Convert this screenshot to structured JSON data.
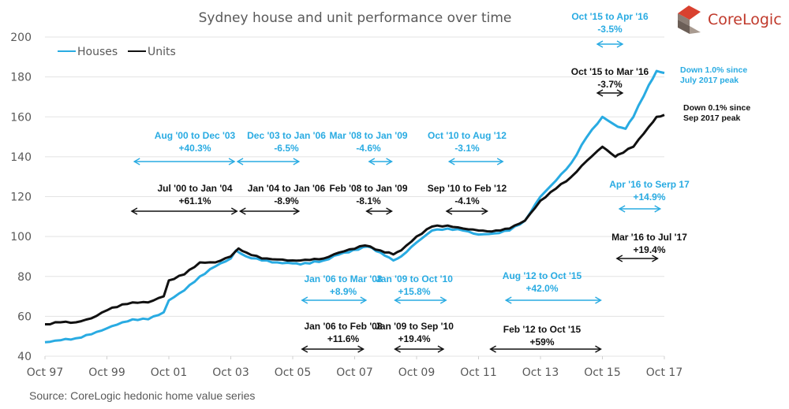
{
  "chart_data": {
    "type": "line",
    "title": "Sydney house and unit performance over time",
    "xlabel": "",
    "ylabel": "",
    "ylim": [
      40,
      200
    ],
    "yticks": [
      40,
      60,
      80,
      100,
      120,
      140,
      160,
      180,
      200
    ],
    "xticks": [
      "Oct 97",
      "Oct 99",
      "Oct 01",
      "Oct 03",
      "Oct 05",
      "Oct 07",
      "Oct 09",
      "Oct 11",
      "Oct 13",
      "Oct 15",
      "Oct 17"
    ],
    "x_range_months": [
      0,
      240
    ],
    "grid": true,
    "legend_position": "top-left",
    "series": [
      {
        "name": "Houses",
        "color": "#29abe2",
        "points": [
          [
            0,
            47
          ],
          [
            6,
            48
          ],
          [
            12,
            49
          ],
          [
            18,
            51
          ],
          [
            24,
            54
          ],
          [
            30,
            57
          ],
          [
            34,
            58.5
          ],
          [
            40,
            58.5
          ],
          [
            46,
            62
          ],
          [
            48,
            68
          ],
          [
            54,
            73
          ],
          [
            60,
            80
          ],
          [
            66,
            85
          ],
          [
            72,
            89
          ],
          [
            74,
            93
          ],
          [
            78,
            90
          ],
          [
            84,
            88
          ],
          [
            90,
            87
          ],
          [
            96,
            86.5
          ],
          [
            99,
            86
          ],
          [
            108,
            88
          ],
          [
            114,
            91
          ],
          [
            125,
            95
          ],
          [
            130,
            92
          ],
          [
            135,
            88
          ],
          [
            138,
            90
          ],
          [
            144,
            97
          ],
          [
            150,
            103
          ],
          [
            156,
            104
          ],
          [
            162,
            103
          ],
          [
            168,
            101
          ],
          [
            174,
            101.5
          ],
          [
            180,
            103
          ],
          [
            186,
            108
          ],
          [
            192,
            120
          ],
          [
            198,
            128
          ],
          [
            204,
            137
          ],
          [
            210,
            150
          ],
          [
            216,
            160
          ],
          [
            222,
            155
          ],
          [
            225,
            154
          ],
          [
            228,
            160
          ],
          [
            234,
            176
          ],
          [
            237,
            183
          ],
          [
            240,
            182
          ]
        ]
      },
      {
        "name": "Units",
        "color": "#111111",
        "points": [
          [
            0,
            56
          ],
          [
            6,
            57
          ],
          [
            12,
            57
          ],
          [
            18,
            59
          ],
          [
            24,
            63
          ],
          [
            30,
            66
          ],
          [
            34,
            67
          ],
          [
            40,
            67
          ],
          [
            46,
            70
          ],
          [
            48,
            78
          ],
          [
            54,
            81
          ],
          [
            60,
            87
          ],
          [
            66,
            87
          ],
          [
            72,
            90
          ],
          [
            75,
            94
          ],
          [
            78,
            92
          ],
          [
            84,
            89
          ],
          [
            90,
            88.5
          ],
          [
            96,
            88
          ],
          [
            99,
            88
          ],
          [
            108,
            89
          ],
          [
            114,
            92
          ],
          [
            124,
            95.5
          ],
          [
            130,
            93
          ],
          [
            135,
            91
          ],
          [
            138,
            93
          ],
          [
            144,
            100
          ],
          [
            150,
            105
          ],
          [
            156,
            105.5
          ],
          [
            162,
            104
          ],
          [
            168,
            103
          ],
          [
            173,
            102.5
          ],
          [
            180,
            104
          ],
          [
            186,
            108
          ],
          [
            192,
            118
          ],
          [
            198,
            124
          ],
          [
            204,
            130
          ],
          [
            210,
            138
          ],
          [
            216,
            145
          ],
          [
            222,
            141
          ],
          [
            221,
            140
          ],
          [
            228,
            145
          ],
          [
            234,
            155
          ],
          [
            237,
            160
          ],
          [
            240,
            161
          ]
        ]
      }
    ],
    "annotations": [
      {
        "text": "Aug '00 to Dec '03",
        "value": "+40.3%",
        "series": "Houses",
        "from": 34,
        "to": 74
      },
      {
        "text": "Dec '03 to Jan '06",
        "value": "-6.5%",
        "series": "Houses",
        "from": 74,
        "to": 99
      },
      {
        "text": "Mar '08 to Jan '09",
        "value": "-4.6%",
        "series": "Houses",
        "from": 125,
        "to": 135
      },
      {
        "text": "Oct '10 to Aug '12",
        "value": "-3.1%",
        "series": "Houses",
        "from": 156,
        "to": 178
      },
      {
        "text": "Oct '15 to Apr '16",
        "value": "-3.5%",
        "series": "Houses",
        "from": 216,
        "to": 222
      },
      {
        "text": "Jan '06 to Mar '08",
        "value": "+8.9%",
        "series": "Houses",
        "from": 99,
        "to": 125
      },
      {
        "text": "Jan '09 to Oct '10",
        "value": "+15.8%",
        "series": "Houses",
        "from": 135,
        "to": 156
      },
      {
        "text": "Aug '12 to Oct '15",
        "value": "+42.0%",
        "series": "Houses",
        "from": 178,
        "to": 216
      },
      {
        "text": "Apr '16 to Serp 17",
        "value": "+14.9%",
        "series": "Houses",
        "from": 222,
        "to": 239
      },
      {
        "text": "Jul '00 to Jan '04",
        "value": "+61.1%",
        "series": "Units",
        "from": 33,
        "to": 75
      },
      {
        "text": "Jan '04 to Jan '06",
        "value": "-8.9%",
        "series": "Units",
        "from": 75,
        "to": 99
      },
      {
        "text": "Feb '08 to Jan '09",
        "value": "-8.1%",
        "series": "Units",
        "from": 124,
        "to": 135
      },
      {
        "text": "Sep '10 to Feb '12",
        "value": "-4.1%",
        "series": "Units",
        "from": 155,
        "to": 172
      },
      {
        "text": "Oct '15 to Mar '16",
        "value": "-3.7%",
        "series": "Units",
        "from": 216,
        "to": 221
      },
      {
        "text": "Jan '06 to Feb '08",
        "value": "+11.6%",
        "series": "Units",
        "from": 99,
        "to": 124
      },
      {
        "text": "Jan '09 to Sep '10",
        "value": "+19.4%",
        "series": "Units",
        "from": 135,
        "to": 155
      },
      {
        "text": "Feb '12 to Oct '15",
        "value": "+59%",
        "series": "Units",
        "from": 172,
        "to": 216
      },
      {
        "text": "Mar '16 to Jul '17",
        "value": "+19.4%",
        "series": "Units",
        "from": 221,
        "to": 238
      }
    ],
    "end_notes": [
      {
        "line1": "Down 1.0% since",
        "line2": "July 2017 peak",
        "series": "Houses"
      },
      {
        "line1": "Down 0.1% since",
        "line2": "Sep 2017 peak",
        "series": "Units"
      }
    ]
  },
  "source": "Source:  CoreLogic hedonic home value series",
  "logo": {
    "text": "CoreLogic",
    "color": "#c8412f"
  }
}
